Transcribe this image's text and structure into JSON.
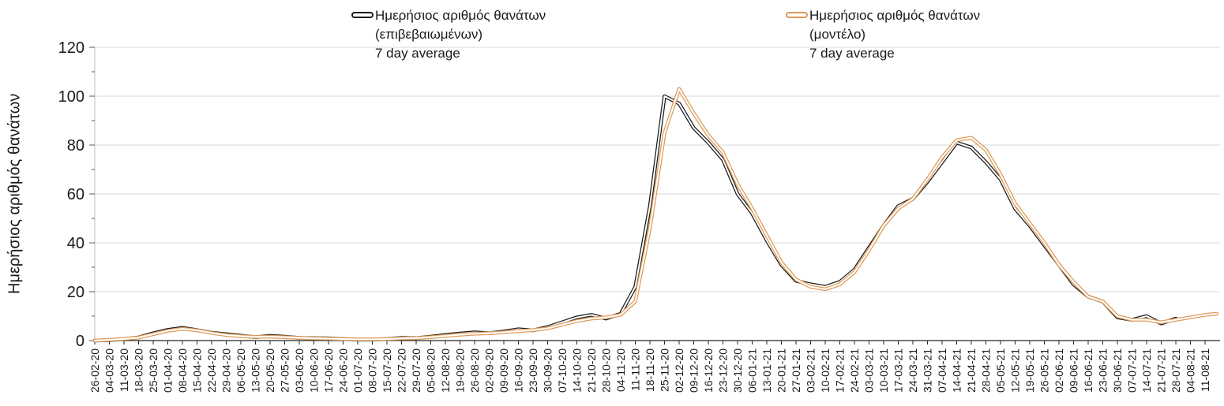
{
  "chart_data": {
    "type": "line",
    "title": "",
    "xlabel": "",
    "ylabel": "Ημερήσιος αριθμός θανάτων",
    "ylim": [
      0,
      120
    ],
    "ytick_step": 20,
    "ytick_minor_step": 10,
    "grid": "horizontal-light",
    "y_tick_labels": [
      "0",
      "20",
      "40",
      "60",
      "80",
      "100",
      "120"
    ],
    "categories": [
      "26-02-20",
      "04-03-20",
      "11-03-20",
      "18-03-20",
      "25-03-20",
      "01-04-20",
      "08-04-20",
      "15-04-20",
      "22-04-20",
      "29-04-20",
      "06-05-20",
      "13-05-20",
      "20-05-20",
      "27-05-20",
      "03-06-20",
      "10-06-20",
      "17-06-20",
      "24-06-20",
      "01-07-20",
      "08-07-20",
      "15-07-20",
      "22-07-20",
      "29-07-20",
      "05-08-20",
      "12-08-20",
      "19-08-20",
      "26-08-20",
      "02-09-20",
      "09-09-20",
      "16-09-20",
      "23-09-20",
      "30-09-20",
      "07-10-20",
      "14-10-20",
      "21-10-20",
      "28-10-20",
      "04-11-20",
      "11-11-20",
      "18-11-20",
      "25-11-20",
      "02-12-20",
      "09-12-20",
      "16-12-20",
      "23-12-20",
      "30-12-20",
      "06-01-21",
      "13-01-21",
      "20-01-21",
      "27-01-21",
      "03-02-21",
      "10-02-21",
      "17-02-21",
      "24-02-21",
      "03-03-21",
      "10-03-21",
      "17-03-21",
      "24-03-21",
      "31-03-21",
      "07-04-21",
      "14-04-21",
      "21-04-21",
      "28-04-21",
      "05-05-21",
      "12-05-21",
      "19-05-21",
      "26-05-21",
      "02-06-21",
      "09-06-21",
      "16-06-21",
      "23-06-21",
      "30-06-21",
      "07-07-21",
      "14-07-21",
      "21-07-21",
      "28-07-21",
      "04-08-21",
      "11-08-21"
    ],
    "series": [
      {
        "key": "confirmed",
        "name": "Ημερήσιος αριθμός θανάτων (επιβεβαιωμένων) 7 day average",
        "color": "#1a1a1a",
        "style": "double-line",
        "values": [
          0,
          0.2,
          0.6,
          1.3,
          3,
          4.4,
          5.2,
          4.3,
          3.2,
          2.6,
          2,
          1.4,
          1.9,
          1.6,
          1.1,
          1,
          0.9,
          0.6,
          0.4,
          0.4,
          0.6,
          1.1,
          1,
          1.6,
          2.3,
          2.9,
          3.4,
          3,
          3.7,
          4.6,
          4.2,
          5.5,
          7.5,
          9.5,
          10.5,
          9,
          11,
          22,
          55,
          100,
          97,
          87,
          81,
          74,
          60,
          52,
          41,
          31,
          24.5,
          23,
          22,
          24,
          29,
          38,
          47,
          55,
          58,
          65,
          73,
          81,
          79,
          73,
          66,
          54,
          47,
          39,
          31,
          23,
          18,
          16,
          9.5,
          8.5,
          10,
          7,
          9,
          null,
          null
        ]
      },
      {
        "key": "model",
        "name": "Ημερήσιος αριθμός θανάτων (μοντέλο) 7 day average",
        "color": "#DD9A59",
        "style": "double-line",
        "values": [
          0,
          0.3,
          0.7,
          1.2,
          2.6,
          4,
          4.8,
          4.2,
          3.1,
          2.3,
          1.8,
          1.5,
          1.6,
          1.4,
          1.1,
          0.9,
          0.8,
          0.6,
          0.5,
          0.5,
          0.6,
          0.9,
          1,
          1.4,
          1.9,
          2.4,
          2.8,
          3,
          3.4,
          3.9,
          4.3,
          5,
          6.5,
          8,
          9,
          9.5,
          10.5,
          16,
          46,
          85,
          103,
          93,
          84,
          77,
          64,
          54,
          43,
          32,
          25,
          22,
          21,
          23,
          28,
          37,
          47,
          54,
          58,
          66,
          75,
          82,
          83,
          78,
          68,
          56,
          48,
          40,
          31,
          24,
          18,
          16,
          10,
          8.5,
          8.5,
          7.5,
          8.5,
          9.5,
          10.5
        ],
        "extension": {
          "weeks_past_last_tick": 0.8,
          "value": 11
        }
      }
    ],
    "legend": {
      "position": "top",
      "entries": [
        {
          "key": "confirmed",
          "color": "#1a1a1a",
          "lines": [
            "Ημερήσιος αριθμός θανάτων",
            "(επιβεβαιωμένων)",
            "7 day average"
          ]
        },
        {
          "key": "model",
          "color": "#DD9A59",
          "lines": [
            "Ημερήσιος αριθμός θανάτων",
            "(μοντέλο)",
            "7 day average"
          ]
        }
      ]
    }
  }
}
